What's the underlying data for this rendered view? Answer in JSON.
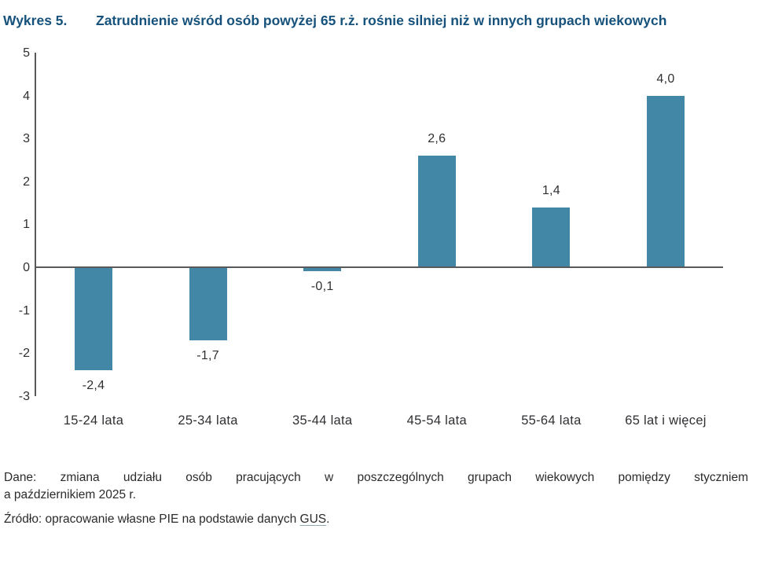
{
  "title": {
    "label": "Wykres 5.",
    "text": "Zatrudnienie wśród osób powyżej 65 r.ż. rośnie silniej niż w innych grupach wiekowych"
  },
  "chart_data": {
    "type": "bar",
    "categories": [
      "15-24 lata",
      "25-34 lata",
      "35-44 lata",
      "45-54 lata",
      "55-64 lata",
      "65 lat i więcej"
    ],
    "values": [
      -2.4,
      -1.7,
      -0.1,
      2.6,
      1.4,
      4.0
    ],
    "value_labels": [
      "-2,4",
      "-1,7",
      "-0,1",
      "2,6",
      "1,4",
      "4,0"
    ],
    "y_ticks": [
      5,
      4,
      3,
      2,
      1,
      0,
      -1,
      -2,
      -3
    ],
    "y_tick_labels": [
      "5",
      "4",
      "3",
      "2",
      "1",
      "0",
      "-1",
      "-2",
      "-3"
    ],
    "ylim": [
      -3,
      5
    ],
    "title": "",
    "xlabel": "",
    "ylabel": "",
    "grid": false,
    "legend": null,
    "bar_color": "#4387A6",
    "axis_color": "#58595B"
  },
  "footer": {
    "note_line1": "Dane: zmiana udziału osób pracujących w poszczególnych grupach wiekowych pomiędzy styczniem",
    "note_line2": "a październikiem 2025 r.",
    "source_prefix": "Źródło: opracowanie własne PIE na podstawie danych ",
    "source_link": "GUS",
    "source_suffix": "."
  },
  "colors": {
    "title": "#16527B",
    "text": "#2F3033"
  }
}
